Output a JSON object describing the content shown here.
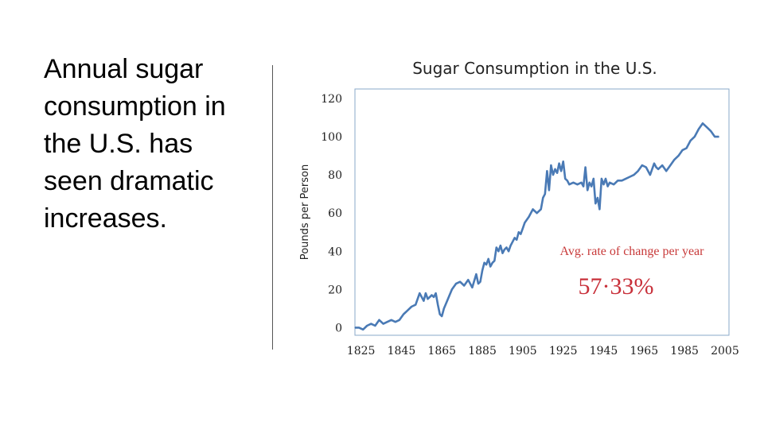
{
  "slide": {
    "text_lines": [
      "Annual sugar",
      "consumption in",
      "the U.S. has",
      "seen dramatic",
      "increases."
    ]
  },
  "chart_data": {
    "type": "line",
    "title": "Sugar Consumption in the U.S.",
    "xlabel": "",
    "ylabel": "Pounds per Person",
    "xlim": [
      1822,
      2007
    ],
    "ylim": [
      -4,
      125
    ],
    "x_ticks": [
      1825,
      1845,
      1865,
      1885,
      1905,
      1925,
      1945,
      1965,
      1985,
      2005
    ],
    "y_ticks": [
      0,
      20,
      40,
      60,
      80,
      100,
      120
    ],
    "line_color": "#4a7ab5",
    "frame_color": "#8aa8c8",
    "grid": false,
    "series": [
      {
        "x": [
          1822,
          1824,
          1826,
          1828,
          1830,
          1832,
          1834,
          1836,
          1838,
          1840,
          1842,
          1844,
          1846,
          1848,
          1850,
          1852,
          1854,
          1856,
          1857,
          1858,
          1860,
          1861,
          1862,
          1863,
          1864,
          1865,
          1866,
          1868,
          1870,
          1872,
          1874,
          1876,
          1878,
          1880,
          1882,
          1883,
          1884,
          1885,
          1886,
          1887,
          1888,
          1889,
          1890,
          1891,
          1892,
          1893,
          1894,
          1895,
          1896,
          1897,
          1898,
          1899,
          1900,
          1901,
          1902,
          1903,
          1904,
          1905,
          1906,
          1908,
          1910,
          1912,
          1914,
          1915,
          1916,
          1917,
          1918,
          1919,
          1920,
          1921,
          1922,
          1923,
          1924,
          1925,
          1926,
          1927,
          1928,
          1930,
          1932,
          1934,
          1935,
          1936,
          1937,
          1938,
          1939,
          1940,
          1941,
          1942,
          1943,
          1944,
          1945,
          1946,
          1947,
          1948,
          1950,
          1952,
          1954,
          1956,
          1958,
          1960,
          1962,
          1964,
          1966,
          1968,
          1970,
          1971,
          1972,
          1974,
          1976,
          1978,
          1980,
          1982,
          1984,
          1986,
          1988,
          1990,
          1992,
          1994,
          1996,
          1998,
          2000,
          2002
        ],
        "values": [
          0,
          0,
          -1,
          1,
          2,
          1,
          4,
          2,
          3,
          4,
          3,
          4,
          7,
          9,
          11,
          12,
          18,
          14,
          18,
          15,
          17,
          16,
          18,
          12,
          7,
          6,
          10,
          15,
          20,
          23,
          24,
          22,
          25,
          21,
          28,
          23,
          24,
          30,
          34,
          33,
          36,
          32,
          34,
          35,
          42,
          40,
          43,
          39,
          41,
          42,
          40,
          43,
          45,
          47,
          46,
          50,
          49,
          52,
          55,
          58,
          62,
          60,
          62,
          68,
          70,
          82,
          72,
          85,
          80,
          83,
          81,
          86,
          82,
          87,
          78,
          77,
          75,
          76,
          75,
          76,
          74,
          84,
          72,
          76,
          74,
          78,
          65,
          68,
          62,
          78,
          75,
          78,
          74,
          76,
          75,
          77,
          77,
          78,
          79,
          80,
          82,
          85,
          84,
          80,
          86,
          84,
          83,
          85,
          82,
          85,
          88,
          90,
          93,
          94,
          98,
          100,
          104,
          107,
          105,
          103,
          100,
          100
        ],
        "name": ""
      }
    ],
    "annotations": [
      {
        "text": "Avg. rate of change per year",
        "color": "#c83a3a"
      },
      {
        "text": "57·33%",
        "color": "#c8303a"
      }
    ]
  }
}
